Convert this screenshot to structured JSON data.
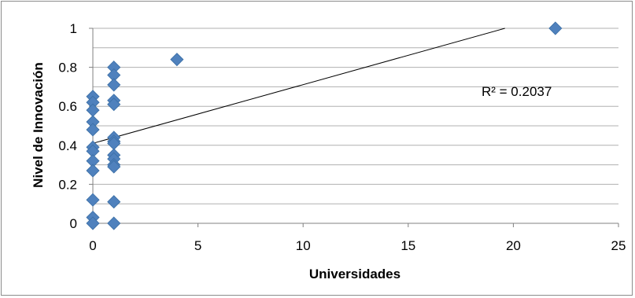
{
  "chart_data": {
    "type": "scatter",
    "xlabel": "Universidades",
    "ylabel": "Nivel de Innovación",
    "xlim": [
      0,
      25
    ],
    "ylim": [
      0,
      1
    ],
    "x_ticks": [
      "0",
      "5",
      "10",
      "15",
      "20",
      "25"
    ],
    "y_ticks": [
      "0",
      "0.2",
      "0.4",
      "0.6",
      "0.8",
      "1"
    ],
    "grid": "horizontal",
    "marker": "diamond",
    "marker_color": "#4f81bd",
    "points": [
      {
        "x": 0,
        "y": 0.65
      },
      {
        "x": 0,
        "y": 0.62
      },
      {
        "x": 0,
        "y": 0.58
      },
      {
        "x": 0,
        "y": 0.52
      },
      {
        "x": 0,
        "y": 0.48
      },
      {
        "x": 0,
        "y": 0.39
      },
      {
        "x": 0,
        "y": 0.37
      },
      {
        "x": 0,
        "y": 0.32
      },
      {
        "x": 0,
        "y": 0.27
      },
      {
        "x": 0,
        "y": 0.12
      },
      {
        "x": 0,
        "y": 0.03
      },
      {
        "x": 0,
        "y": 0.0
      },
      {
        "x": 1,
        "y": 0.8
      },
      {
        "x": 1,
        "y": 0.76
      },
      {
        "x": 1,
        "y": 0.71
      },
      {
        "x": 1,
        "y": 0.63
      },
      {
        "x": 1,
        "y": 0.61
      },
      {
        "x": 1,
        "y": 0.44
      },
      {
        "x": 1,
        "y": 0.42
      },
      {
        "x": 1,
        "y": 0.41
      },
      {
        "x": 1,
        "y": 0.35
      },
      {
        "x": 1,
        "y": 0.33
      },
      {
        "x": 1,
        "y": 0.3
      },
      {
        "x": 1,
        "y": 0.29
      },
      {
        "x": 1,
        "y": 0.11
      },
      {
        "x": 1,
        "y": 0.0
      },
      {
        "x": 4,
        "y": 0.84
      },
      {
        "x": 22,
        "y": 1.0
      }
    ],
    "trendline": {
      "x0": 0,
      "y0": 0.41,
      "x1": 19.6,
      "y1": 1.0,
      "color": "#000000"
    },
    "annotation": "R² = 0.2037"
  }
}
